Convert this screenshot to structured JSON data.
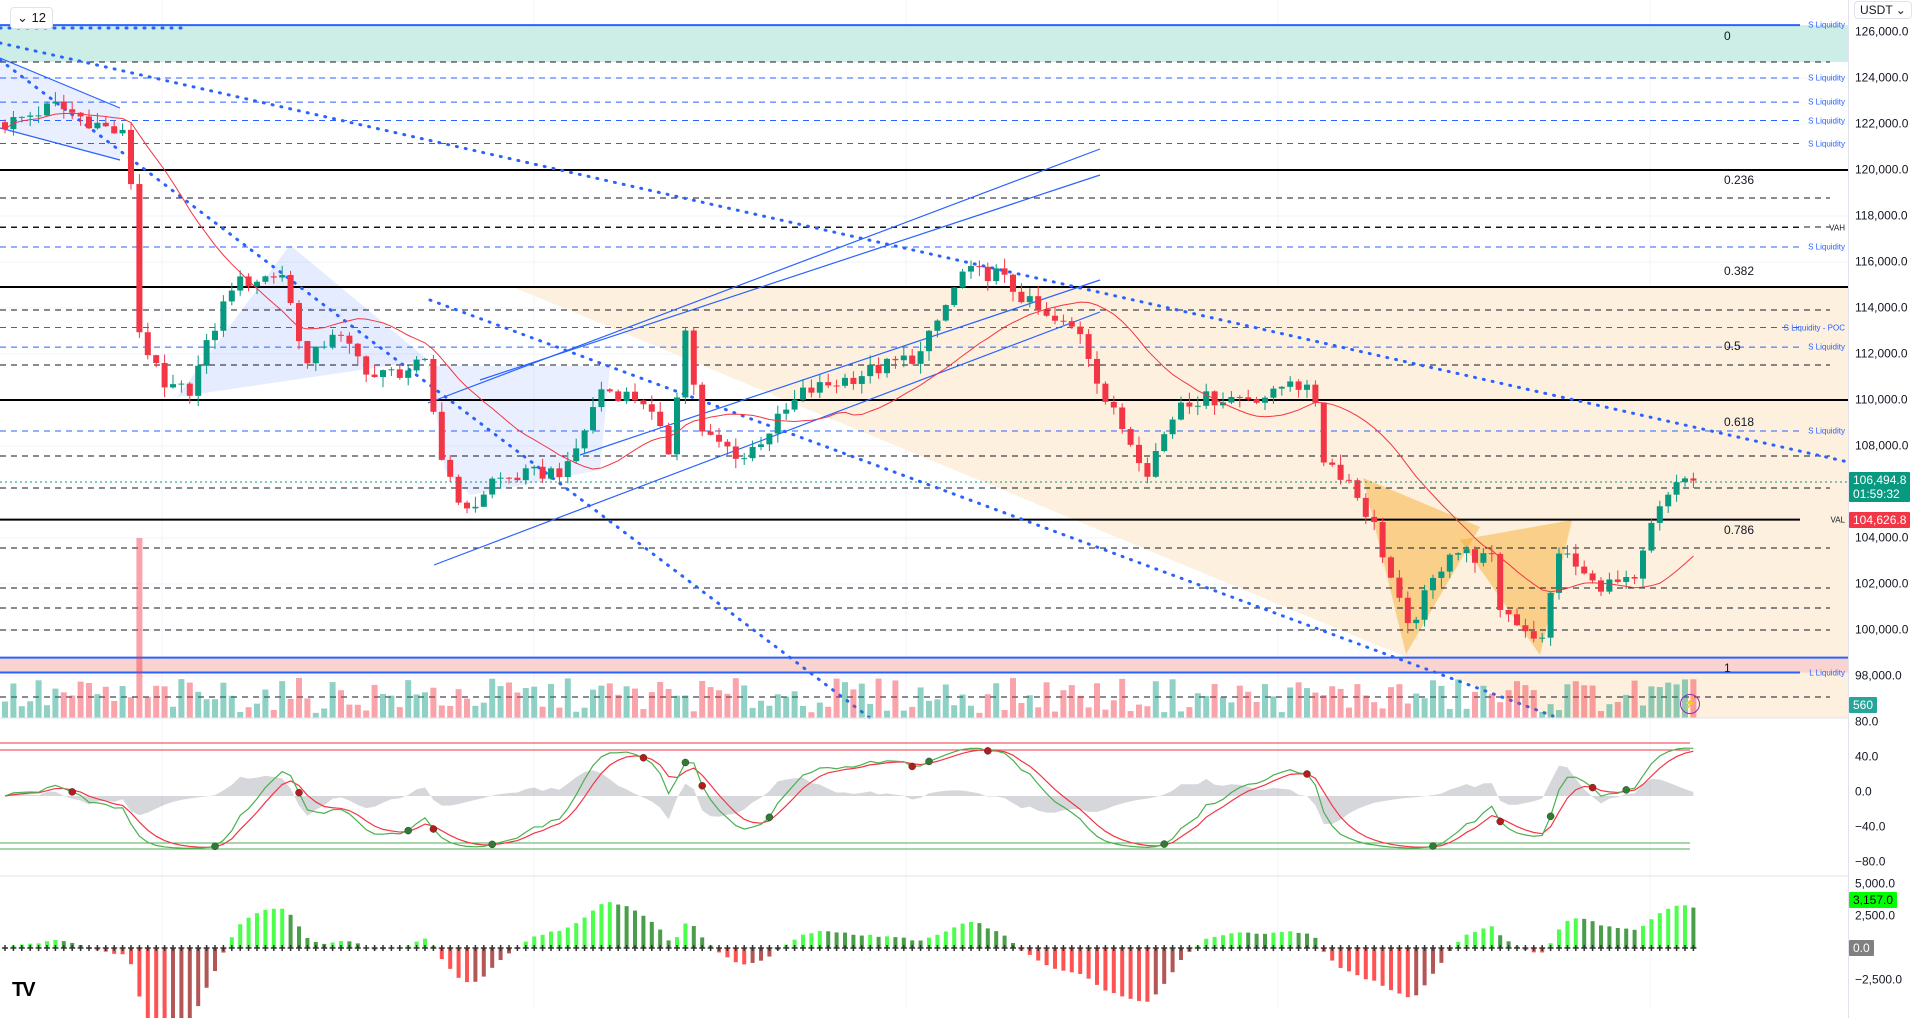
{
  "header": {
    "interval_label": "12",
    "currency": "USDT"
  },
  "price_axis": {
    "labels": [
      "126,000.0",
      "124,000.0",
      "122,000.0",
      "120,000.0",
      "118,000.0",
      "116,000.0",
      "114,000.0",
      "112,000.0",
      "110,000.0",
      "108,000.0",
      "104,000.0",
      "102,000.0",
      "100,000.0",
      "98,000.0"
    ],
    "values": [
      126000,
      124000,
      122000,
      120000,
      118000,
      116000,
      114000,
      112000,
      110000,
      108000,
      104000,
      102000,
      100000,
      98000
    ]
  },
  "badges": {
    "last_price": "106,494.8",
    "countdown": "01:59:32",
    "ma_value": "104,626.8",
    "volume": "560",
    "osc_value": "3,157.0",
    "zero_value": "0.0"
  },
  "osc_axis": {
    "labels": [
      "80.0",
      "40.0",
      "0.0",
      "−40.0",
      "−80.0"
    ],
    "values": [
      80,
      40,
      0,
      -40,
      -80
    ]
  },
  "hist_axis": {
    "labels": [
      "5,000.0",
      "2,500.0",
      "0.0",
      "−2,500.0"
    ],
    "values": [
      5000,
      2500,
      0,
      -2500
    ]
  },
  "fib": [
    {
      "label": "0",
      "price": 126250
    },
    {
      "label": "0.236",
      "price": 120000
    },
    {
      "label": "0.382",
      "price": 116050
    },
    {
      "label": "0.5",
      "price": 112800
    },
    {
      "label": "0.618",
      "price": 109500
    },
    {
      "label": "0.786",
      "price": 104800
    },
    {
      "label": "1",
      "price": 98800
    }
  ],
  "levels": [
    {
      "label": "S Liquidity",
      "price": 126300,
      "style": "solid"
    },
    {
      "label": "S Liquidity",
      "price": 124000,
      "style": "dash"
    },
    {
      "label": "S Liquidity",
      "price": 122950,
      "style": "dash"
    },
    {
      "label": "S Liquidity",
      "price": 122150,
      "style": "dash"
    },
    {
      "label": "S Liquidity",
      "price": 121150,
      "style": "dash"
    },
    {
      "label": "VAH",
      "price": 117500,
      "style": "black"
    },
    {
      "label": "S Liquidity",
      "price": 116650,
      "style": "dash"
    },
    {
      "label": "S Liquidity - POC",
      "price": 113150,
      "style": "dash"
    },
    {
      "label": "S Liquidity",
      "price": 112300,
      "style": "dash"
    },
    {
      "label": "S Liquidity",
      "price": 108650,
      "style": "dash"
    },
    {
      "label": "VAL",
      "price": 104800,
      "style": "val"
    },
    {
      "label": "L Liquidity",
      "price": 98150,
      "style": "solid"
    }
  ],
  "colors": {
    "up": "#089981",
    "down": "#f23645",
    "accent": "#2962ff",
    "ma": "#f23645"
  },
  "chart_data": {
    "type": "candlestick",
    "symbol_quote": "USDT",
    "candles": 202,
    "price_path": [
      [
        0,
        122000
      ],
      [
        6,
        122800
      ],
      [
        14,
        121500
      ],
      [
        15,
        119500
      ],
      [
        16,
        113000
      ],
      [
        19,
        110400
      ],
      [
        22,
        110500
      ],
      [
        27,
        115000
      ],
      [
        33,
        115500
      ],
      [
        36,
        111500
      ],
      [
        39,
        113000
      ],
      [
        44,
        111000
      ],
      [
        50,
        111500
      ],
      [
        52,
        107500
      ],
      [
        55,
        105000
      ],
      [
        58,
        106500
      ],
      [
        67,
        107000
      ],
      [
        71,
        110500
      ],
      [
        76,
        110000
      ],
      [
        79,
        107800
      ],
      [
        81,
        113000
      ],
      [
        83,
        108500
      ],
      [
        88,
        107500
      ],
      [
        95,
        110300
      ],
      [
        105,
        111500
      ],
      [
        109,
        112000
      ],
      [
        114,
        115500
      ],
      [
        118,
        115500
      ],
      [
        124,
        113500
      ],
      [
        128,
        113000
      ],
      [
        131,
        110000
      ],
      [
        136,
        107000
      ],
      [
        140,
        110000
      ],
      [
        151,
        110200
      ],
      [
        153,
        111000
      ],
      [
        156,
        110000
      ],
      [
        157,
        107500
      ],
      [
        160,
        106500
      ],
      [
        163,
        104500
      ],
      [
        167,
        100000
      ],
      [
        172,
        103500
      ],
      [
        177,
        103000
      ],
      [
        178,
        101000
      ],
      [
        183,
        99500
      ],
      [
        185,
        103500
      ],
      [
        189,
        102000
      ],
      [
        194,
        102000
      ],
      [
        196,
        104500
      ],
      [
        199,
        106500
      ],
      [
        201,
        106494.8
      ]
    ],
    "last_price": 106494.8,
    "ma_last": 104626.8,
    "ylim": [
      96500,
      127000
    ],
    "osc_ylim": [
      -90,
      90
    ],
    "hist_ylim": [
      -3300,
      5500
    ],
    "hist_last": 3157.0
  }
}
